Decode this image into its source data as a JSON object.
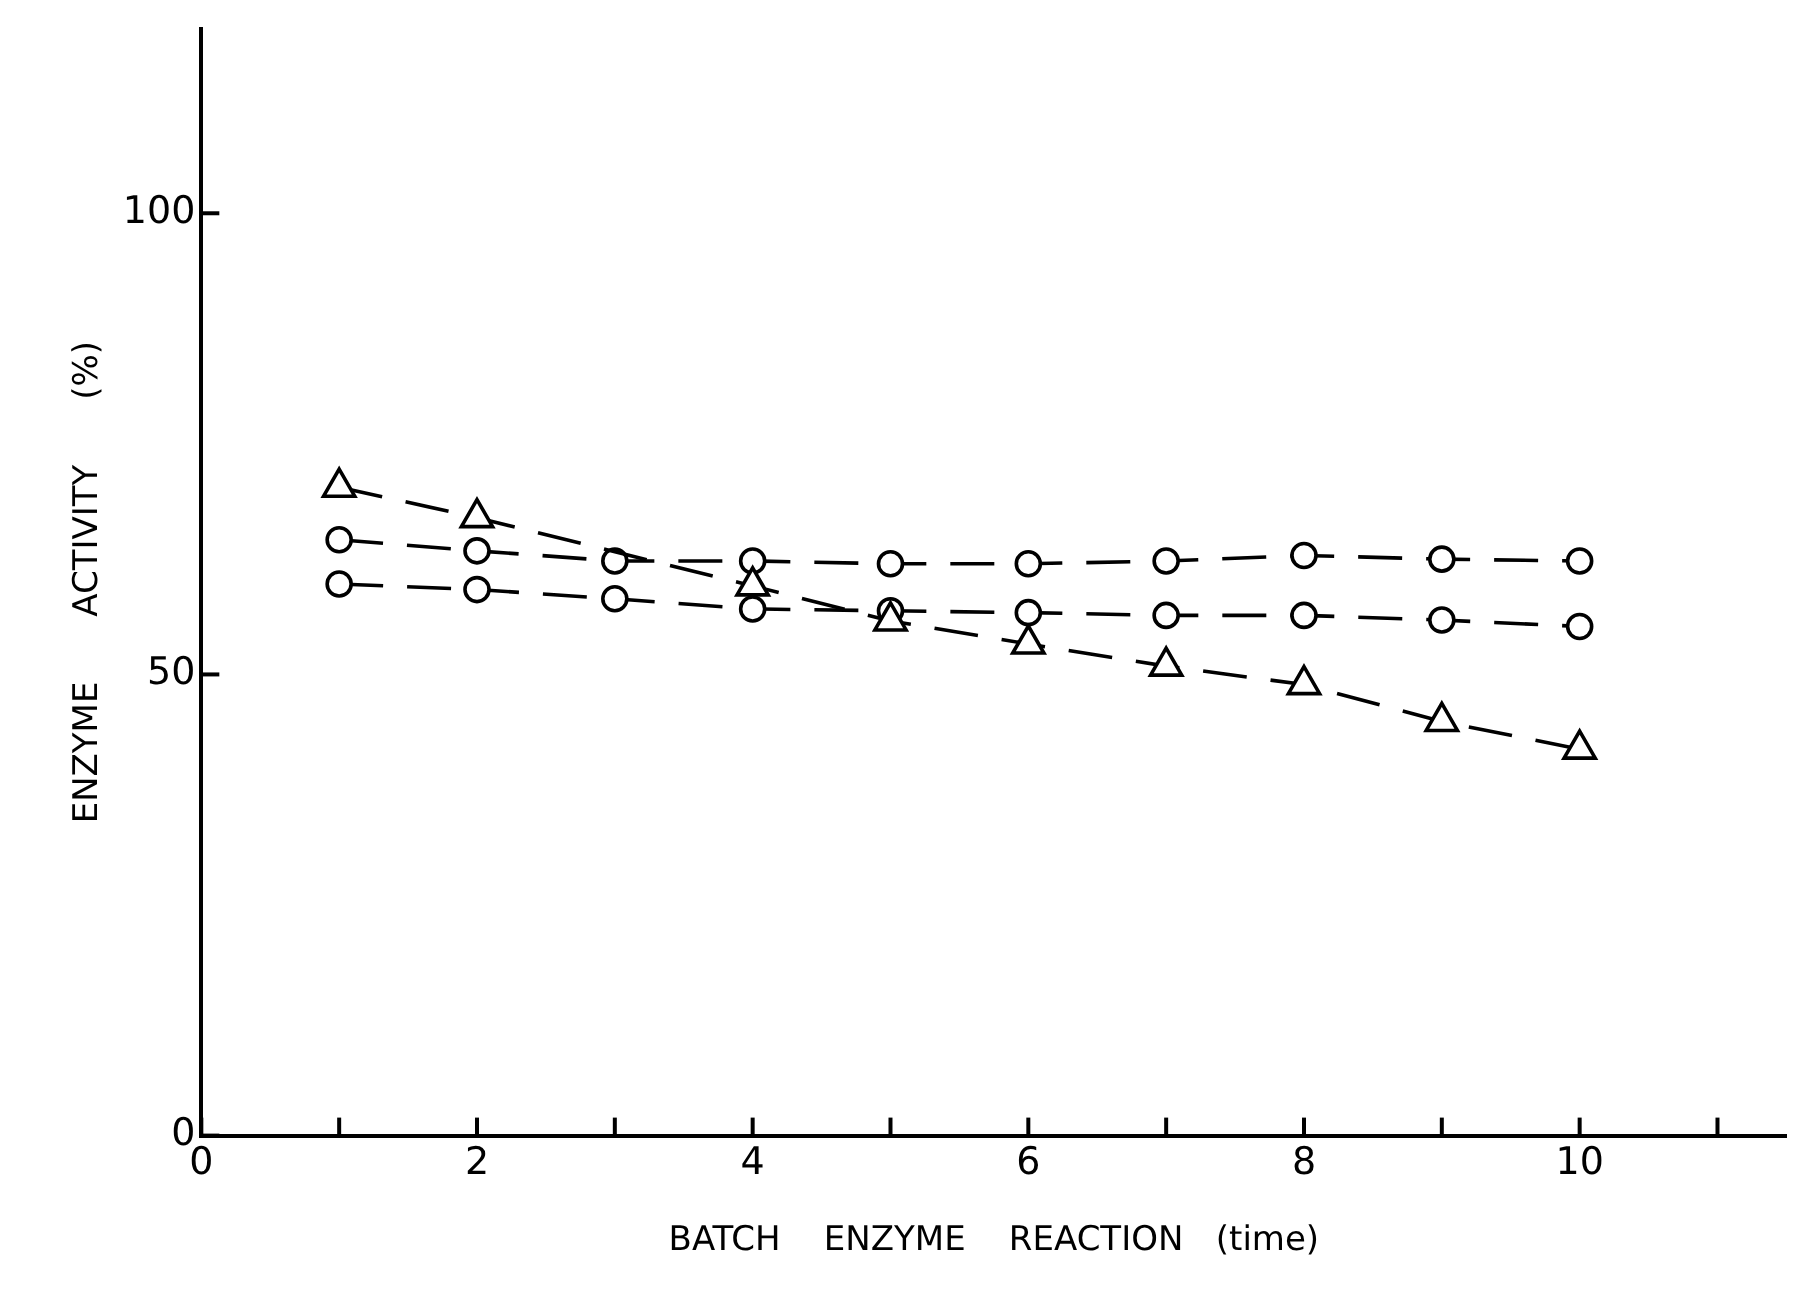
{
  "chart_data": {
    "type": "line",
    "xlabel": "BATCH    ENZYME    REACTION   (time)",
    "ylabel": "ENZYME      ACTIVITY      (%)",
    "x": [
      1,
      2,
      3,
      4,
      5,
      6,
      7,
      8,
      9,
      10
    ],
    "series": [
      {
        "color": "#000000",
        "marker": "circle",
        "values": [
          64.6,
          63.4,
          62.3,
          62.3,
          62.0,
          62.0,
          62.3,
          62.9,
          62.5,
          62.3
        ]
      },
      {
        "color": "#000000",
        "marker": "circle",
        "values": [
          59.8,
          59.2,
          58.2,
          57.1,
          56.9,
          56.7,
          56.4,
          56.4,
          55.9,
          55.2
        ]
      },
      {
        "color": "#000000",
        "marker": "triangle",
        "values": [
          70.3,
          67.0,
          null,
          59.6,
          55.8,
          53.3,
          50.9,
          48.9,
          44.9,
          41.9
        ]
      }
    ],
    "xlim": [
      0,
      11.5
    ],
    "xticks": [
      0,
      {
        "value": 1,
        "label": null
      },
      2,
      {
        "value": 3,
        "label": null
      },
      4,
      {
        "value": 5,
        "label": null
      },
      6,
      {
        "value": 7,
        "label": null
      },
      8,
      {
        "value": 9,
        "label": null
      },
      10,
      {
        "value": 11,
        "label": null
      }
    ],
    "ylim": [
      0,
      120
    ],
    "yticks": [
      0,
      50,
      100
    ],
    "grid": false,
    "legend": false,
    "line_style": "dashed"
  }
}
